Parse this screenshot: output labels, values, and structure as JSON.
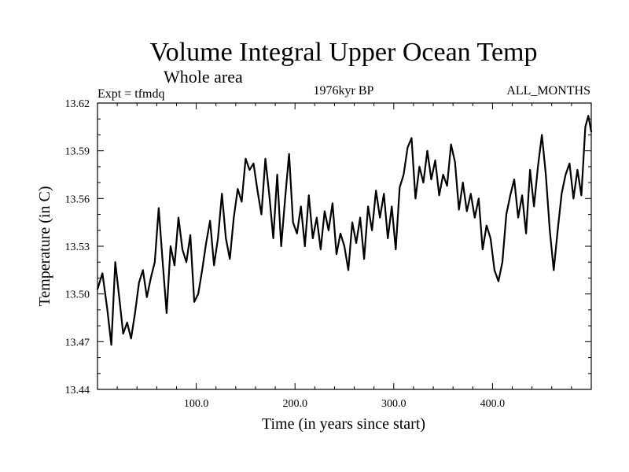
{
  "chart_data": {
    "type": "line",
    "title": "Volume Integral Upper Ocean Temp",
    "subtitle": "Whole area",
    "left_label": "Expt = tfmdq",
    "center_label": "1976kyr BP",
    "right_label": "ALL_MONTHS",
    "xlabel": "Time (in years since start)",
    "ylabel": "Temperature (in C)",
    "xlim": [
      0,
      500
    ],
    "ylim": [
      13.44,
      13.62
    ],
    "x_ticks": [
      100,
      200,
      300,
      400
    ],
    "x_tick_labels": [
      "100.0",
      "200.0",
      "300.0",
      "400.0"
    ],
    "y_ticks": [
      13.44,
      13.47,
      13.5,
      13.53,
      13.56,
      13.59,
      13.62
    ],
    "y_tick_labels": [
      "13.44",
      "13.47",
      "13.50",
      "13.53",
      "13.56",
      "13.59",
      "13.62"
    ],
    "series": [
      {
        "name": "Temperature",
        "x": [
          0,
          5,
          10,
          14,
          18,
          22,
          26,
          30,
          34,
          38,
          42,
          46,
          50,
          54,
          58,
          62,
          66,
          70,
          74,
          78,
          82,
          86,
          90,
          94,
          98,
          102,
          106,
          110,
          114,
          118,
          122,
          126,
          130,
          134,
          138,
          142,
          146,
          150,
          154,
          158,
          162,
          166,
          170,
          174,
          178,
          182,
          186,
          190,
          194,
          198,
          202,
          206,
          210,
          214,
          218,
          222,
          226,
          230,
          234,
          238,
          242,
          246,
          250,
          254,
          258,
          262,
          266,
          270,
          274,
          278,
          282,
          286,
          290,
          294,
          298,
          302,
          306,
          310,
          314,
          318,
          322,
          326,
          330,
          334,
          338,
          342,
          346,
          350,
          354,
          358,
          362,
          366,
          370,
          374,
          378,
          382,
          386,
          390,
          394,
          398,
          402,
          406,
          410,
          414,
          418,
          422,
          426,
          430,
          434,
          438,
          442,
          446,
          450,
          454,
          458,
          462,
          466,
          470,
          474,
          478,
          482,
          486,
          490,
          494,
          497,
          500
        ],
        "values": [
          13.503,
          13.513,
          13.49,
          13.468,
          13.52,
          13.498,
          13.475,
          13.482,
          13.472,
          13.488,
          13.507,
          13.515,
          13.498,
          13.51,
          13.52,
          13.554,
          13.52,
          13.488,
          13.53,
          13.518,
          13.548,
          13.528,
          13.52,
          13.537,
          13.495,
          13.5,
          13.515,
          13.532,
          13.546,
          13.518,
          13.535,
          13.563,
          13.535,
          13.522,
          13.548,
          13.566,
          13.558,
          13.585,
          13.578,
          13.582,
          13.565,
          13.55,
          13.585,
          13.562,
          13.535,
          13.575,
          13.53,
          13.56,
          13.588,
          13.545,
          13.538,
          13.555,
          13.53,
          13.562,
          13.535,
          13.548,
          13.528,
          13.552,
          13.54,
          13.557,
          13.525,
          13.538,
          13.53,
          13.515,
          13.545,
          13.532,
          13.548,
          13.522,
          13.555,
          13.54,
          13.565,
          13.548,
          13.563,
          13.535,
          13.555,
          13.528,
          13.567,
          13.575,
          13.592,
          13.598,
          13.56,
          13.58,
          13.57,
          13.59,
          13.572,
          13.584,
          13.562,
          13.575,
          13.568,
          13.594,
          13.583,
          13.553,
          13.57,
          13.552,
          13.563,
          13.548,
          13.56,
          13.528,
          13.543,
          13.535,
          13.515,
          13.508,
          13.52,
          13.55,
          13.562,
          13.572,
          13.548,
          13.562,
          13.538,
          13.578,
          13.555,
          13.58,
          13.6,
          13.575,
          13.54,
          13.515,
          13.54,
          13.563,
          13.575,
          13.582,
          13.56,
          13.578,
          13.562,
          13.605,
          13.612,
          13.602
        ]
      }
    ]
  }
}
